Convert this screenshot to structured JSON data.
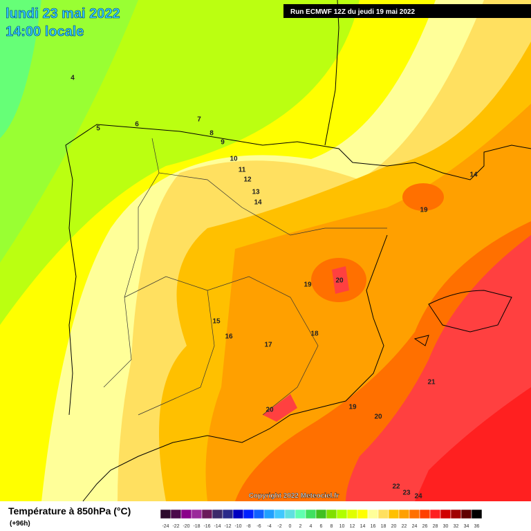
{
  "header": {
    "date_line": "lundi 23 mai 2022",
    "time_line": "14:00 locale",
    "run": "Run ECMWF 12Z du jeudi 19 mai 2022"
  },
  "contour_labels": [
    4,
    5,
    6,
    7,
    8,
    9,
    10,
    11,
    12,
    13,
    14,
    14,
    19,
    20,
    19,
    15,
    16,
    17,
    18,
    21,
    19,
    20,
    20,
    22,
    23,
    24
  ],
  "copyright": "Copyright 2022 Meteociel.fr",
  "footer": {
    "title": "Température à 850hPa (°C)",
    "lead": "(+96h)"
  },
  "legend": {
    "labels": [
      -24,
      -22,
      -20,
      -18,
      -16,
      -14,
      -12,
      -10,
      -8,
      -6,
      -4,
      -2,
      0,
      2,
      4,
      6,
      8,
      10,
      12,
      14,
      16,
      18,
      20,
      22,
      24,
      26,
      28,
      30,
      32,
      34,
      36
    ],
    "colors": [
      "#2d0a2d",
      "#4b0a4b",
      "#8a008a",
      "#9b2a9b",
      "#6b1a5a",
      "#3c2a6a",
      "#2a2a8a",
      "#0000c0",
      "#0020ff",
      "#1060ff",
      "#20a0ff",
      "#40c8ff",
      "#60e0e0",
      "#60ffb0",
      "#40e060",
      "#40c020",
      "#80e000",
      "#b0ff00",
      "#e0ff00",
      "#ffff00",
      "#ffff99",
      "#ffe060",
      "#ffc000",
      "#ffa000",
      "#ff7000",
      "#ff4000",
      "#ff2020",
      "#d00000",
      "#a00000",
      "#600000",
      "#000000"
    ]
  }
}
